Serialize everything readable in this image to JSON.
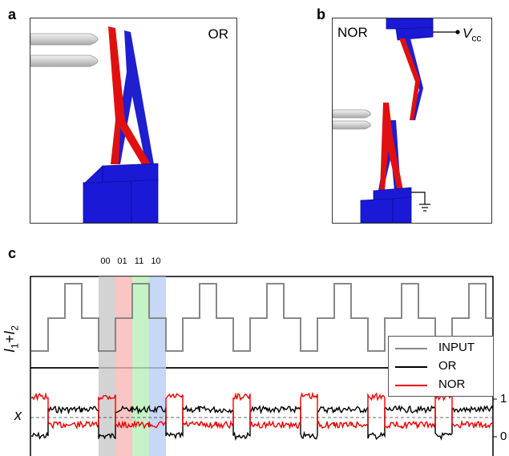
{
  "panels": {
    "a": {
      "letter": "a",
      "gate": "OR"
    },
    "b": {
      "letter": "b",
      "gate": "NOR",
      "vcc_main": "V",
      "vcc_sub": "cc"
    },
    "c": {
      "letter": "c"
    }
  },
  "colors": {
    "fixed_electrode": "#1a1ad6",
    "beam_blue": "#1f1fd0",
    "beam_red": "#e01010",
    "band_00": "#c8c8c8",
    "band_01": "#f7b7b7",
    "band_11": "#b6f0b6",
    "band_10": "#b9cdf4",
    "input_trace": "#888888",
    "or_trace": "#000000",
    "nor_trace": "#ee0000"
  },
  "icons": [
    "probe-tip-icon",
    "ground-symbol-icon"
  ],
  "chart_data": {
    "type": "line",
    "band_labels": [
      "00",
      "01",
      "11",
      "10"
    ],
    "top": {
      "ylabel_main": "I",
      "ylabel_sub1": "1",
      "ylabel_plus": "+",
      "ylabel_var2": "I",
      "ylabel_sub2": "2",
      "pattern": [
        0,
        1,
        2,
        1
      ],
      "periods": 7
    },
    "bottom": {
      "ylabel": "x",
      "yticks": [
        "1",
        "0"
      ],
      "or_pattern": [
        0,
        1,
        1,
        1
      ],
      "nor_pattern": [
        1,
        0,
        0,
        0
      ]
    },
    "legend": {
      "placement": "right",
      "entries": [
        "INPUT",
        "OR",
        "NOR"
      ]
    }
  }
}
